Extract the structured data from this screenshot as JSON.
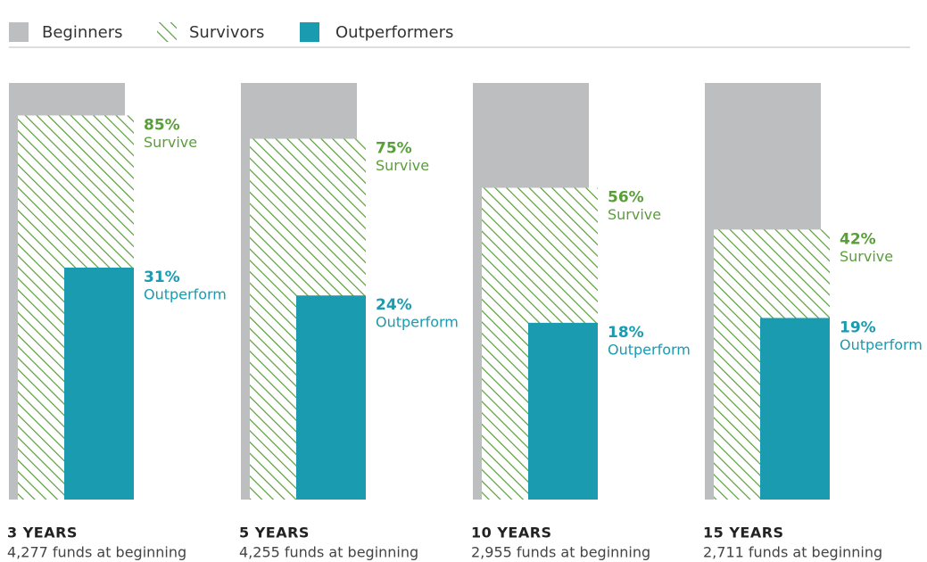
{
  "chart_data": {
    "type": "bar",
    "scale": "sqrt",
    "ylim": [
      0,
      100
    ],
    "categories": [
      "3 YEARS",
      "5 YEARS",
      "10 YEARS",
      "15 YEARS"
    ],
    "subtitles": [
      "4,277 funds at beginning",
      "4,255 funds at beginning",
      "2,955 funds at beginning",
      "2,711 funds at beginning"
    ],
    "series": [
      {
        "name": "Beginners",
        "color": "#bcbec0",
        "values": [
          100,
          100,
          100,
          100
        ]
      },
      {
        "name": "Survivors",
        "color": "#5a9e3a",
        "pattern": "hatch",
        "tag": "Survive",
        "values": [
          85,
          75,
          56,
          42
        ],
        "value_labels": [
          "85%",
          "75%",
          "56%",
          "42%"
        ]
      },
      {
        "name": "Outperformers",
        "color": "#1a9bb0",
        "tag": "Outperform",
        "values": [
          31,
          24,
          18,
          19
        ],
        "value_labels": [
          "31%",
          "24%",
          "18%",
          "19%"
        ]
      }
    ]
  }
}
